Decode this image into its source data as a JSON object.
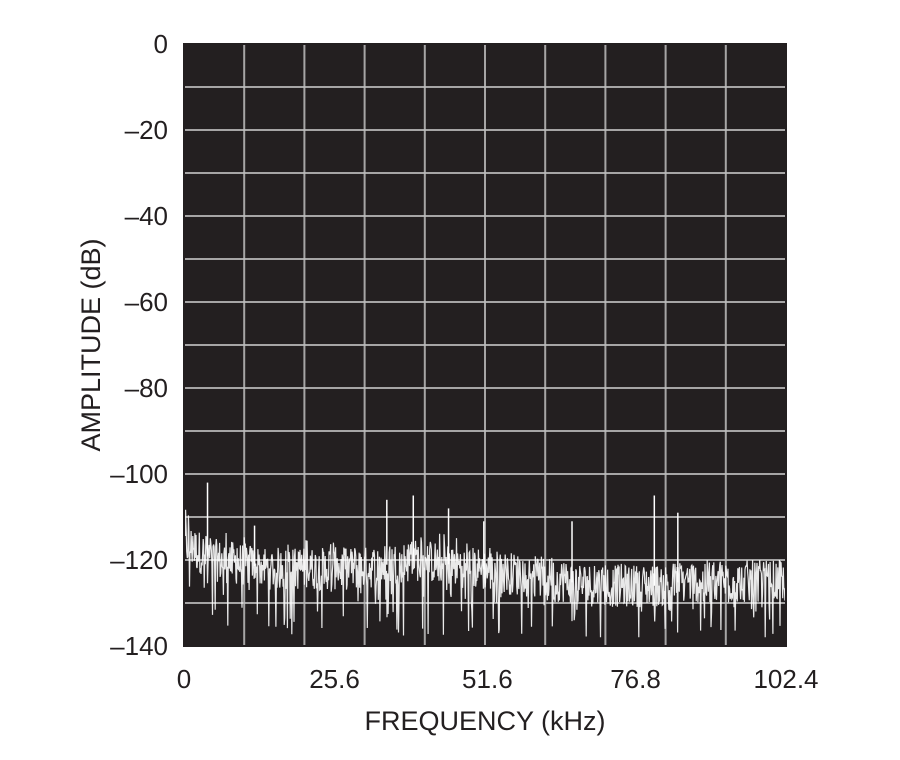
{
  "chart_data": {
    "type": "line",
    "title": "",
    "xlabel": "FREQUENCY (kHz)",
    "ylabel": "AMPLITUDE (dB)",
    "xlim": [
      0,
      102.4
    ],
    "ylim": [
      -140,
      0
    ],
    "x_ticks": [
      0,
      25.6,
      51.6,
      76.8,
      102.4
    ],
    "x_tick_labels": [
      "0",
      "25.6",
      "51.6",
      "76.8",
      "102.4"
    ],
    "y_ticks": [
      0,
      -20,
      -40,
      -60,
      -80,
      -100,
      -120,
      -140
    ],
    "y_tick_labels": [
      "0",
      "–20",
      "–40",
      "–60",
      "–80",
      "–100",
      "–120",
      "–140"
    ],
    "grid": true,
    "background_color": "#231f20",
    "trace_color": "#ffffff",
    "grid_color": "#bdbdbd",
    "noise_floor": {
      "x": [
        0,
        5,
        10,
        15,
        20,
        25,
        30,
        35,
        40,
        45,
        50,
        55,
        60,
        65,
        70,
        75,
        80,
        85,
        90,
        95,
        102.4
      ],
      "upper_envelope": [
        -107,
        -112,
        -114,
        -114,
        -114,
        -115,
        -115,
        -115,
        -113,
        -114,
        -116,
        -117,
        -118,
        -119,
        -120,
        -121,
        -121,
        -120,
        -120,
        -120,
        -119
      ],
      "mean": [
        -116,
        -120,
        -121,
        -122,
        -122,
        -122,
        -122,
        -121,
        -120,
        -121,
        -122,
        -123,
        -124,
        -125,
        -126,
        -126,
        -126,
        -125,
        -125,
        -125,
        -125
      ],
      "lower_envelope": [
        -134,
        -137,
        -138,
        -138,
        -138,
        -138,
        -138,
        -138,
        -138,
        -138,
        -138,
        -138,
        -138,
        -138,
        -138,
        -138,
        -138,
        -138,
        -138,
        -138,
        -138
      ]
    },
    "spurs": [
      {
        "x": 4.0,
        "y": -102
      },
      {
        "x": 12.0,
        "y": -112
      },
      {
        "x": 34.5,
        "y": -106
      },
      {
        "x": 39.0,
        "y": -105
      },
      {
        "x": 45.0,
        "y": -108
      },
      {
        "x": 51.0,
        "y": -111
      },
      {
        "x": 66.0,
        "y": -111
      },
      {
        "x": 80.0,
        "y": -105
      },
      {
        "x": 84.0,
        "y": -109
      }
    ]
  }
}
